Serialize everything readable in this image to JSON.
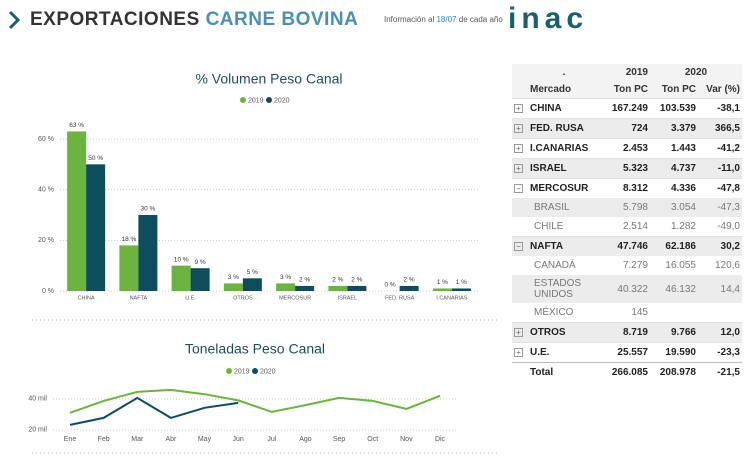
{
  "header": {
    "title_part1": "EXPORTACIONES",
    "title_part2": "CARNE BOVINA",
    "info_before": "Información al",
    "info_date": "18/07",
    "info_after": "de cada año",
    "logo": "inac"
  },
  "chart_data": [
    {
      "type": "bar",
      "title": "% Volumen Peso Canal",
      "legend": "top",
      "categories": [
        "CHINA",
        "NAFTA",
        "U.E.",
        "OTROS",
        "MERCOSUR",
        "ISRAEL",
        "FED. RUSA",
        "I.CANARIAS"
      ],
      "series": [
        {
          "name": "2019",
          "color": "#6db33f",
          "values": [
            63,
            18,
            10,
            3,
            3,
            2,
            0,
            1
          ],
          "value_labels": [
            "63 %",
            "18 %",
            "10 %",
            "3 %",
            "3 %",
            "2 %",
            "0 %",
            "1 %"
          ]
        },
        {
          "name": "2020",
          "color": "#0e4d5c",
          "values": [
            50,
            30,
            9,
            5,
            2,
            2,
            2,
            1
          ],
          "value_labels": [
            "50 %",
            "30 %",
            "9 %",
            "5 %",
            "2 %",
            "2 %",
            "2 %",
            "1 %"
          ]
        }
      ],
      "ylim": [
        0,
        70
      ],
      "yticks": [
        {
          "value": 0,
          "label": "0 %"
        },
        {
          "value": 20,
          "label": "20 %"
        },
        {
          "value": 40,
          "label": "40 %"
        },
        {
          "value": 60,
          "label": "60 %"
        }
      ],
      "grid": true
    },
    {
      "type": "line",
      "title": "Toneladas Peso Canal",
      "legend": "top",
      "categories": [
        "Ene",
        "Feb",
        "Mar",
        "Abr",
        "May",
        "Jun",
        "Jul",
        "Ago",
        "Sep",
        "Oct",
        "Nov",
        "Dic"
      ],
      "series": [
        {
          "name": "2019",
          "color": "#6db33f",
          "values": [
            31000,
            38700,
            44500,
            45800,
            43000,
            39000,
            31600,
            36000,
            40600,
            38700,
            33500,
            42000
          ]
        },
        {
          "name": "2020",
          "color": "#0e4d5c",
          "values": [
            23200,
            27700,
            40600,
            27700,
            34200,
            37400,
            null,
            null,
            null,
            null,
            null,
            null
          ]
        }
      ],
      "ylim": [
        17000,
        47000
      ],
      "yticks": [
        {
          "value": 20000,
          "label": "20 mil"
        },
        {
          "value": 40000,
          "label": "40 mil"
        }
      ],
      "grid": true
    }
  ],
  "table": {
    "header": [
      ".",
      "2019",
      "2020"
    ],
    "columns": [
      "Mercado",
      "Ton PC",
      "Ton PC",
      "Var (%)"
    ],
    "rows": [
      {
        "cells": [
          "CHINA",
          "167.249",
          "103.539",
          "-38,1"
        ]
      },
      {
        "cells": [
          "FED. RUSA",
          "724",
          "3.379",
          "366,5"
        ]
      },
      {
        "cells": [
          "I.CANARIAS",
          "2.453",
          "1.443",
          "-41,2"
        ]
      },
      {
        "cells": [
          "ISRAEL",
          "5.323",
          "4.737",
          "-11,0"
        ]
      },
      {
        "cells": [
          "MERCOSUR",
          "8.312",
          "4.336",
          "-47,8"
        ],
        "children": [
          {
            "cells": [
              "BRASIL",
              "5.798",
              "3.054",
              "-47,3"
            ]
          },
          {
            "cells": [
              "CHILE",
              "2.514",
              "1.282",
              "-49,0"
            ]
          }
        ]
      },
      {
        "cells": [
          "NAFTA",
          "47.746",
          "62.186",
          "30,2"
        ],
        "children": [
          {
            "cells": [
              "CANADÁ",
              "7.279",
              "16.055",
              "120,6"
            ]
          },
          {
            "cells": [
              "ESTADOS UNIDOS",
              "40.322",
              "46.132",
              "14,4"
            ]
          },
          {
            "cells": [
              "MÉXICO",
              "145"
            ]
          }
        ]
      },
      {
        "cells": [
          "OTROS",
          "8.719",
          "9.766",
          "12,0"
        ]
      },
      {
        "cells": [
          "U.E.",
          "25.557",
          "19.590",
          "-23,3"
        ]
      }
    ],
    "total": [
      "Total",
      "266.085",
      "208.978",
      "-21,5"
    ]
  }
}
